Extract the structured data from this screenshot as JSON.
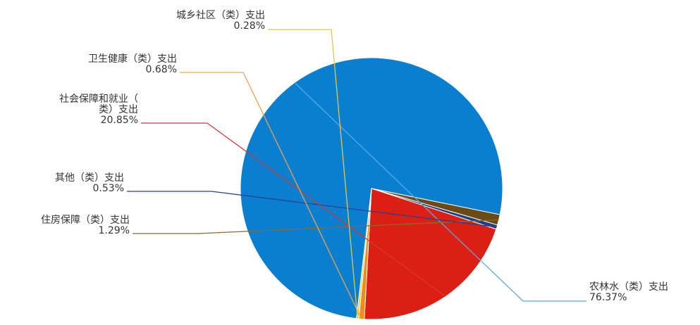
{
  "chart_data": {
    "type": "pie",
    "slices": [
      {
        "name": "农林水（类）支出",
        "value": 76.37,
        "label": "76.37%",
        "color": "#0a7fd0"
      },
      {
        "name": "住房保障（类）支出",
        "value": 1.29,
        "label": "1.29%",
        "color": "#6b4a14"
      },
      {
        "name": "其他（类）支出",
        "value": 0.53,
        "label": "0.53%",
        "color": "#1f3f86"
      },
      {
        "name": "社会保障和就业（类）支出",
        "name_lines": [
          "社会保障和就业（",
          "类）支出"
        ],
        "value": 20.85,
        "label": "20.85%",
        "color": "#dc1f14"
      },
      {
        "name": "卫生健康（类）支出",
        "value": 0.68,
        "label": "0.68%",
        "color": "#f08c1c"
      },
      {
        "name": "城乡社区（类）支出",
        "value": 0.28,
        "label": "0.28%",
        "color": "#e6d25a"
      }
    ],
    "leader_line_colors": [
      "#5aa9e0",
      "#8a6a2c",
      "#2a3f8f",
      "#d33a33",
      "#f0a04a",
      "#e0c84a"
    ]
  }
}
